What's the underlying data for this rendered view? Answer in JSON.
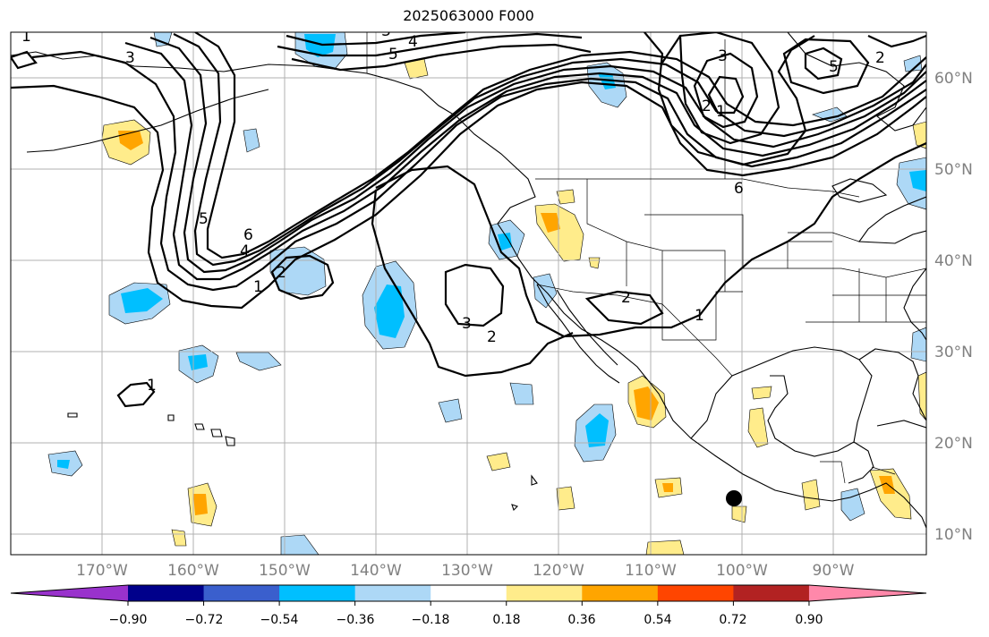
{
  "title": "2025063000 F000",
  "latitude_labels": [
    "60°N",
    "50°N",
    "40°N",
    "30°N",
    "20°N",
    "10°N"
  ],
  "longitude_labels": [
    "170°W",
    "160°W",
    "150°W",
    "140°W",
    "130°W",
    "120°W",
    "110°W",
    "100°W",
    "90°W"
  ],
  "colorbar": {
    "tick_labels": [
      "−0.90",
      "−0.72",
      "−0.54",
      "−0.36",
      "−0.18",
      "0.18",
      "0.36",
      "0.54",
      "0.72",
      "0.90"
    ],
    "colors": [
      "#9932cc",
      "#00008b",
      "#3a5fcd",
      "#00bfff",
      "#add8f6",
      "#ffffff",
      "#ffec8b",
      "#ffa500",
      "#ff4500",
      "#b22222",
      "#ff88aa"
    ]
  },
  "contour_labels": [
    "1",
    "2",
    "3",
    "4",
    "5",
    "6"
  ],
  "colors": {
    "grid": "#b0b0b0",
    "axis_labels": "#808080",
    "contour": "#000000"
  }
}
